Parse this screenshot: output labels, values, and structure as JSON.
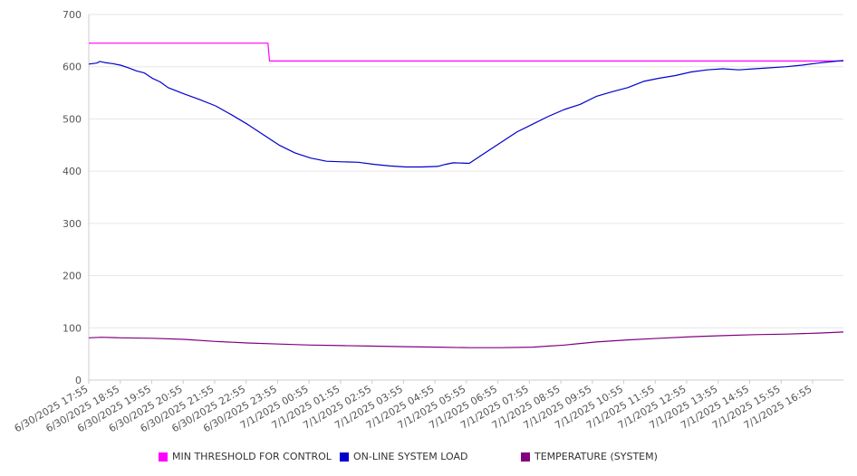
{
  "chart_data": {
    "type": "line",
    "ylim": [
      0,
      700
    ],
    "y_ticks": [
      0,
      100,
      200,
      300,
      400,
      500,
      600,
      700
    ],
    "x_tick_labels": [
      "6/30/2025 17:55",
      "6/30/2025 18:55",
      "6/30/2025 19:55",
      "6/30/2025 20:55",
      "6/30/2025 21:55",
      "6/30/2025 22:55",
      "6/30/2025 23:55",
      "7/1/2025 00:55",
      "7/1/2025 01:55",
      "7/1/2025 02:55",
      "7/1/2025 03:55",
      "7/1/2025 04:55",
      "7/1/2025 05:55",
      "7/1/2025 06:55",
      "7/1/2025 07:55",
      "7/1/2025 08:55",
      "7/1/2025 09:55",
      "7/1/2025 10:55",
      "7/1/2025 11:55",
      "7/1/2025 12:55",
      "7/1/2025 13:55",
      "7/1/2025 14:55",
      "7/1/2025 15:55",
      "7/1/2025 16:55"
    ],
    "x_domain_hours": [
      0,
      23.8
    ],
    "grid": true,
    "legend_position": "bottom",
    "series": [
      {
        "name": "MIN THRESHOLD FOR CONTROL",
        "color": "#ff00ff",
        "x": [
          0,
          5.65,
          5.7,
          23.8
        ],
        "y": [
          645,
          645,
          611,
          611
        ]
      },
      {
        "name": "ON-LINE SYSTEM LOAD",
        "color": "#0000cc",
        "x": [
          0,
          0.25,
          0.35,
          0.5,
          0.75,
          1.0,
          1.25,
          1.5,
          1.75,
          2.0,
          2.25,
          2.5,
          3.0,
          3.5,
          4.0,
          4.5,
          5.0,
          5.5,
          6.0,
          6.5,
          7.0,
          7.5,
          8.0,
          8.5,
          9.0,
          9.5,
          10.0,
          10.5,
          11.0,
          11.25,
          11.5,
          12.0,
          12.5,
          13.0,
          13.5,
          14.0,
          14.5,
          15.0,
          15.5,
          16.0,
          16.5,
          17.0,
          17.5,
          18.0,
          18.5,
          19.0,
          19.5,
          20.0,
          20.5,
          21.0,
          21.5,
          22.0,
          22.5,
          23.0,
          23.5,
          23.8
        ],
        "y": [
          605,
          607,
          610,
          608,
          606,
          603,
          598,
          592,
          588,
          578,
          571,
          560,
          548,
          537,
          525,
          508,
          490,
          470,
          450,
          435,
          425,
          419,
          418,
          417,
          413,
          410,
          408,
          408,
          409,
          413,
          416,
          415,
          435,
          455,
          475,
          490,
          505,
          518,
          528,
          543,
          552,
          560,
          572,
          578,
          583,
          590,
          594,
          596,
          594,
          596,
          598,
          600,
          603,
          607,
          610,
          612
        ]
      },
      {
        "name": "TEMPERATURE (SYSTEM)",
        "color": "#800080",
        "x": [
          0,
          0.4,
          1.0,
          2.0,
          3.0,
          4.0,
          5.0,
          6.0,
          7.0,
          8.0,
          9.0,
          10.0,
          11.0,
          12.0,
          13.0,
          14.0,
          15.0,
          16.0,
          17.0,
          18.0,
          19.0,
          20.0,
          21.0,
          22.0,
          23.0,
          23.8
        ],
        "y": [
          81,
          82,
          81,
          80,
          78,
          74,
          71,
          69,
          67,
          66,
          65,
          64,
          63,
          62,
          62,
          63,
          67,
          73,
          77,
          80,
          83,
          85,
          87,
          88,
          90,
          92
        ]
      }
    ]
  }
}
